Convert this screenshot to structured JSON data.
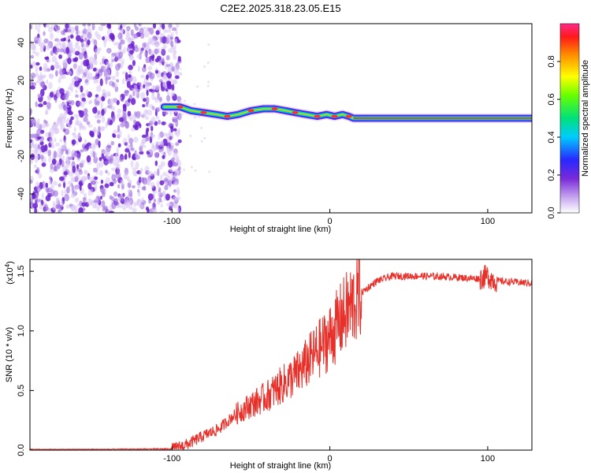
{
  "chart_data": [
    {
      "type": "heatmap",
      "title": "C2E2.2025.318.23.05.E15",
      "xlabel": "Height of straight line (km)",
      "ylabel": "Frequency (Hz)",
      "xlim": [
        -190,
        128
      ],
      "ylim": [
        -50,
        50
      ],
      "xticks": [
        -100,
        0,
        100
      ],
      "xtick_labels": [
        "-100",
        "0",
        "100"
      ],
      "yticks": [
        -40,
        -20,
        0,
        20,
        40
      ],
      "ytick_labels": [
        "-40",
        "-20",
        "0",
        "20",
        "40"
      ],
      "colorbar": {
        "label": "Normalized spectral amplitude",
        "range": [
          0,
          1
        ],
        "ticks": [
          0.0,
          0.2,
          0.4,
          0.6,
          0.8
        ],
        "tick_labels": [
          "0.0",
          "0.2",
          "0.4",
          "0.6",
          "0.8"
        ]
      },
      "noise_region_x": [
        -190,
        -95
      ],
      "signal_track": {
        "x": [
          -105,
          -95,
          -88,
          -80,
          -72,
          -65,
          -58,
          -50,
          -42,
          -35,
          -28,
          -22,
          -15,
          -8,
          -2,
          3,
          8,
          12,
          15,
          128
        ],
        "freq_hz": [
          6,
          6,
          4,
          3,
          2,
          1,
          2,
          4,
          5,
          5,
          4,
          3,
          2,
          1,
          2,
          1,
          2,
          1,
          0,
          0
        ]
      }
    },
    {
      "type": "line",
      "title": "",
      "xlabel": "Height of straight line (km)",
      "ylabel": "SNR (10 * v/v)",
      "y_multiplier_label": "(x10",
      "y_multiplier_exp": "4",
      "y_multiplier_close": ")",
      "xlim": [
        -190,
        128
      ],
      "ylim": [
        0,
        1.6
      ],
      "xticks": [
        -100,
        0,
        100
      ],
      "xtick_labels": [
        "-100",
        "0",
        "100"
      ],
      "yticks": [
        0,
        0.5,
        1.0,
        1.5
      ],
      "ytick_labels": [
        "0.0",
        "0.5",
        "1.0",
        "1.5"
      ],
      "color": "#e8302a",
      "series_keypoints": {
        "x": [
          -190,
          -100,
          -90,
          -80,
          -70,
          -60,
          -50,
          -40,
          -30,
          -20,
          -10,
          0,
          10,
          20,
          30,
          40,
          60,
          80,
          90,
          95,
          100,
          105,
          128
        ],
        "y": [
          0.0,
          0.01,
          0.05,
          0.12,
          0.18,
          0.3,
          0.38,
          0.45,
          0.55,
          0.65,
          0.8,
          0.95,
          1.15,
          1.32,
          1.42,
          1.46,
          1.46,
          1.45,
          1.44,
          1.44,
          1.46,
          1.42,
          1.4
        ]
      }
    }
  ]
}
